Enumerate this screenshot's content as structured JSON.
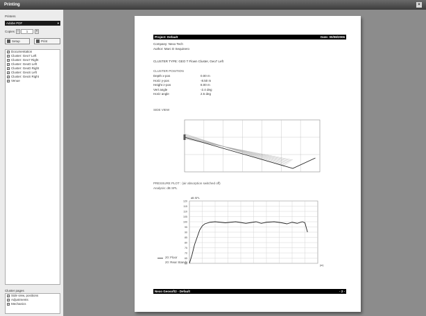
{
  "window": {
    "title": "Printing",
    "close_label": "×"
  },
  "sidebar": {
    "printers_label": "Printers",
    "printer_selected": "Adobe PDF",
    "copies_label": "Copies",
    "copies_value": "1",
    "setup_label": "Setup",
    "print_label": "Print",
    "pages": [
      {
        "label": "Documentation",
        "checked": true
      },
      {
        "label": "Cluster: Geo7 Left",
        "checked": true
      },
      {
        "label": "Cluster: Geo7 Right",
        "checked": true
      },
      {
        "label": "Cluster: GeoD Left",
        "checked": true
      },
      {
        "label": "Cluster: GeoD Right",
        "checked": true
      },
      {
        "label": "Cluster: GeoS Left",
        "checked": true
      },
      {
        "label": "Cluster: GeoS Right",
        "checked": true
      },
      {
        "label": "Venue",
        "checked": true
      }
    ],
    "cluster_pages_label": "Cluster pages",
    "cluster_pages": [
      {
        "label": "Side view, positions",
        "checked": true
      },
      {
        "label": "Adjustments",
        "checked": true
      },
      {
        "label": "Mechanics",
        "checked": true
      }
    ]
  },
  "document": {
    "header_left": "Project: Default",
    "header_right": "Date: 00/08/2006",
    "company": "Company: Nexo Tech",
    "author": "Author: Marc D Sequinero",
    "cluster_type": "CLUSTER TYPE: GEO T Flown Cluster, Geo7 Left",
    "cluster_position_title": "CLUSTER POSITION",
    "position_rows": [
      {
        "key": "Depth x-pos",
        "value": "0.00 m"
      },
      {
        "key": "Horiz y-pos",
        "value": "-8.50 m"
      },
      {
        "key": "Height z-pos",
        "value": "8.00 m"
      },
      {
        "key": "Vert angle",
        "value": "-2.4 deg"
      },
      {
        "key": "Horiz angle",
        "value": "2.5 deg"
      }
    ],
    "side_view_title": "SIDE VIEW",
    "pressure_title": "PRESSURE PLOT : (air absorption switched off)",
    "analysis": "Analysis: dB SPL",
    "plot_unit": "dB SPL",
    "x_unit": "(m)",
    "legend": [
      {
        "label": "z0: Floor"
      },
      {
        "label": "z0: Rear Stands"
      }
    ],
    "footer_left": "Nexo Geosoft2 - Default",
    "footer_right": "- 2 -"
  },
  "chart_data": [
    {
      "type": "line",
      "title": "SIDE VIEW",
      "xlim": [
        0,
        60
      ],
      "ylim": [
        0,
        12
      ],
      "grid": true,
      "series": [
        {
          "values": [
            [
              0,
              8
            ],
            [
              48,
              0.8
            ],
            [
              58,
              3.2
            ]
          ]
        }
      ]
    },
    {
      "type": "line",
      "title": "PRESSURE PLOT",
      "xlabel": "(m)",
      "ylabel": "dB SPL",
      "xlim": [
        0,
        50
      ],
      "ylim": [
        60,
        120
      ],
      "yticks": [
        60,
        65,
        70,
        75,
        80,
        85,
        90,
        95,
        100,
        105,
        110,
        115,
        120
      ],
      "grid": true,
      "series": [
        {
          "x": [
            0,
            1,
            2,
            3,
            4,
            5,
            6,
            8,
            10,
            14,
            18,
            22,
            26,
            28,
            30,
            33,
            36,
            38,
            40,
            42,
            44,
            45,
            46
          ],
          "y": [
            60,
            68,
            78,
            85,
            92,
            96,
            98,
            99.5,
            100,
            99,
            100,
            98.5,
            100,
            98.5,
            99.5,
            100,
            99,
            98,
            99.5,
            98.5,
            100,
            99,
            90
          ]
        }
      ]
    }
  ]
}
